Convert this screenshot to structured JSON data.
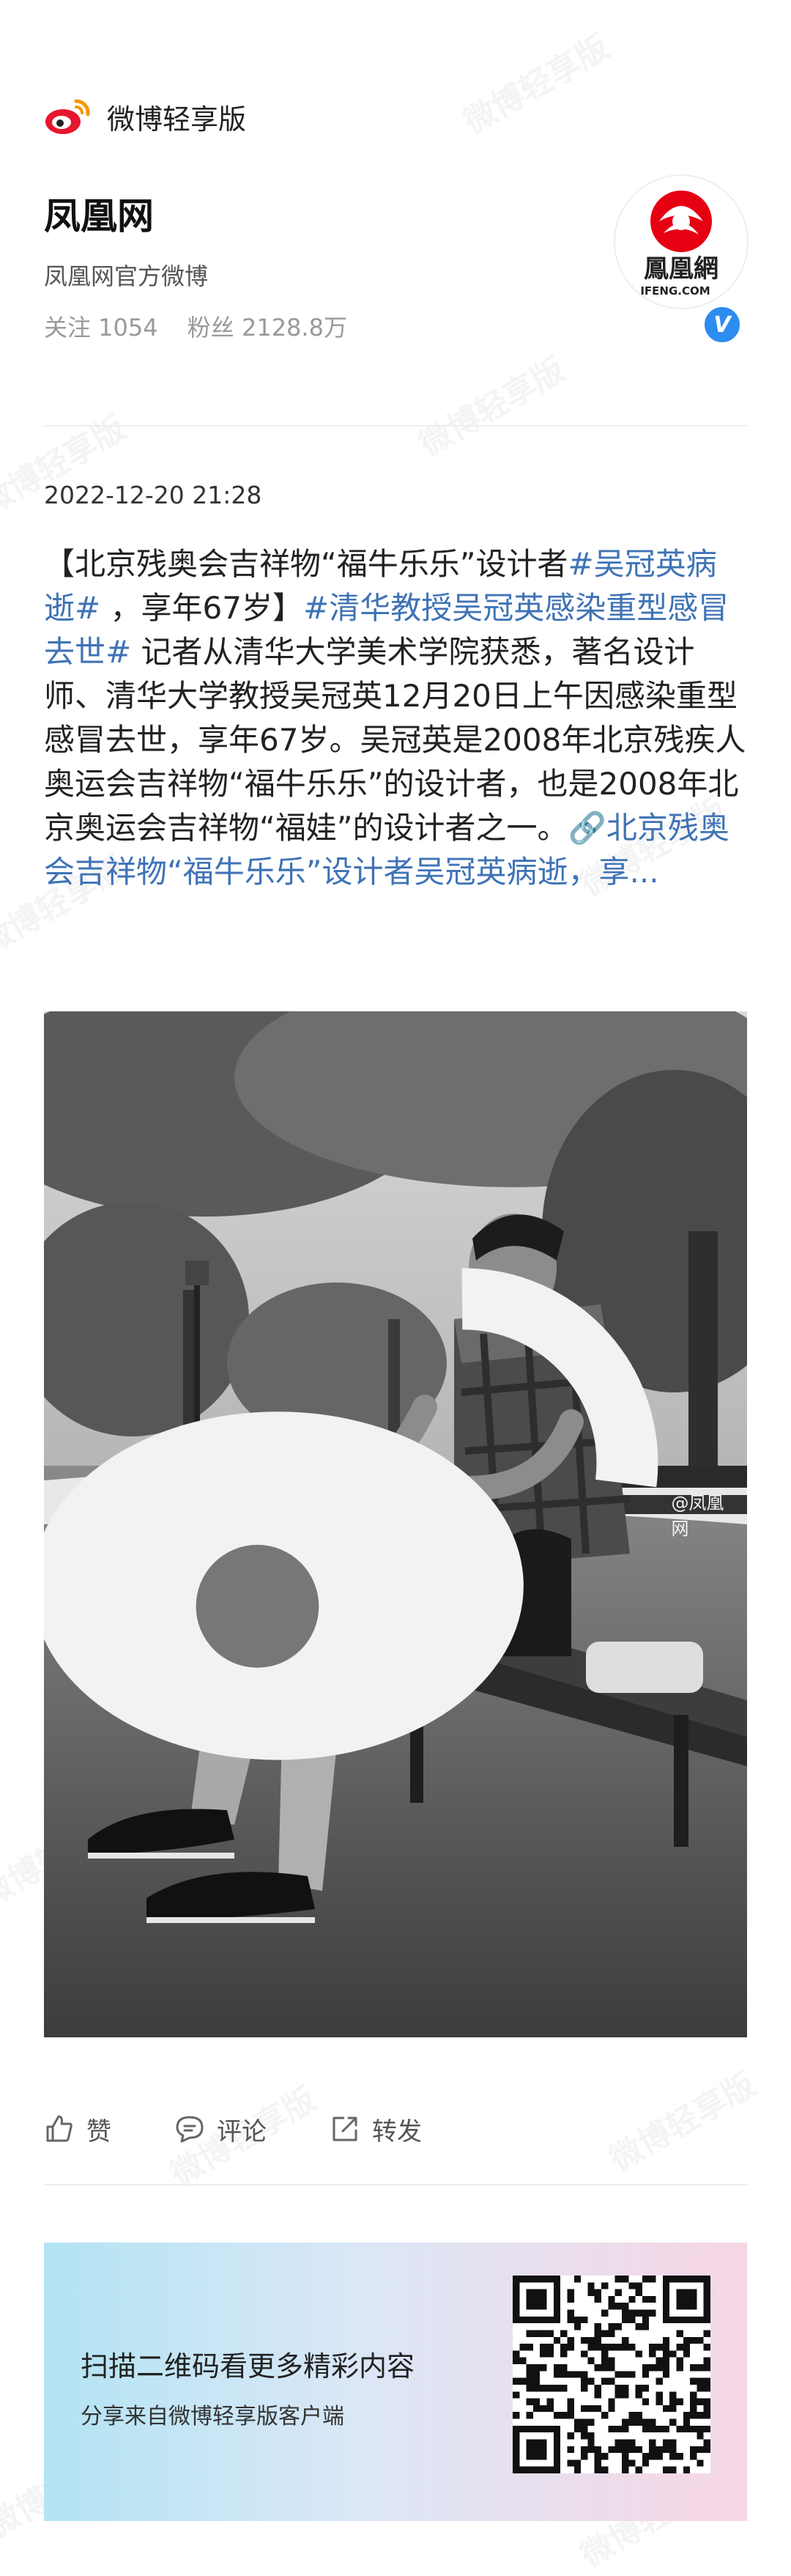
{
  "app": {
    "brand": "微博轻享版",
    "watermark": "微博轻享版"
  },
  "account": {
    "name": "凤凰网",
    "description": "凤凰网官方微博",
    "following_label": "关注 1054",
    "followers_label": "粉丝 2128.8万",
    "avatar_text": "鳳凰網",
    "avatar_domain": "IFENG.COM",
    "verified_mark": "V"
  },
  "post": {
    "timestamp": "2022-12-20 21:28",
    "segments": [
      {
        "text": "【北京残奥会吉祥物“福牛乐乐”设计者",
        "link": false
      },
      {
        "text": "#吴冠英病逝#",
        "link": true
      },
      {
        "text": " ，享年67岁】",
        "link": false
      },
      {
        "text": "#清华教授吴冠英感染重型感冒去世#",
        "link": true
      },
      {
        "text": " 记者从清华大学美术学院获悉，著名设计师、清华大学教授吴冠英12月20日上午因感染重型感冒去世，享年67岁。吴冠英是2008年北京残疾人奥运会吉祥物“福牛乐乐”的设计者，也是2008年北京奥运会吉祥物“福娃”的设计者之一。",
        "link": false
      },
      {
        "text": "🔗北京残奥会吉祥物“福牛乐乐”设计者吴冠英病逝，享...",
        "link": true
      }
    ],
    "photo_credit": "@凤凰网"
  },
  "actions": [
    {
      "name": "like",
      "label": "赞",
      "icon": "thumbs-up-icon"
    },
    {
      "name": "comment",
      "label": "评论",
      "icon": "comment-icon"
    },
    {
      "name": "repost",
      "label": "转发",
      "icon": "share-icon"
    }
  ],
  "banner": {
    "title": "扫描二维码看更多精彩内容",
    "subtitle": "分享来自微博轻享版客户端"
  }
}
